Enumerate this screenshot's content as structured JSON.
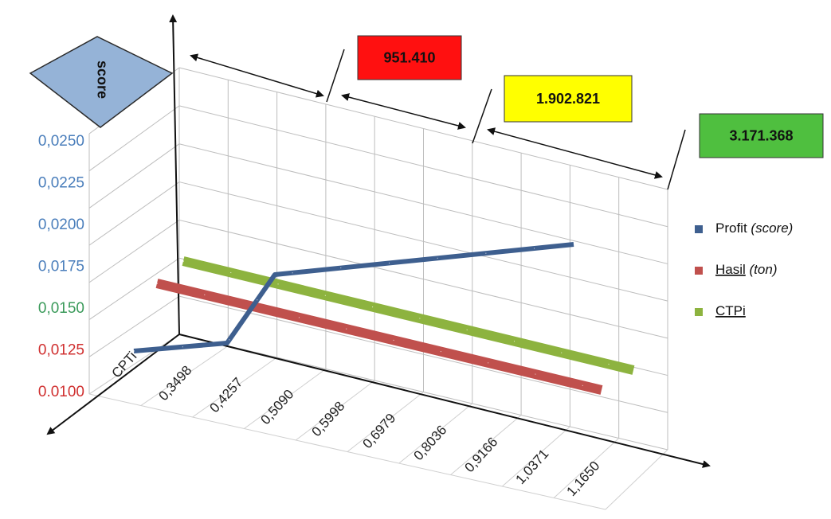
{
  "chart_data": {
    "type": "line",
    "ylabel": "score",
    "yticks": [
      {
        "label": "0,0250",
        "color": "#4a7ebb"
      },
      {
        "label": "0,0225",
        "color": "#4a7ebb"
      },
      {
        "label": "0,0200",
        "color": "#4a7ebb"
      },
      {
        "label": "0,0175",
        "color": "#4a7ebb"
      },
      {
        "label": "0,0150",
        "color": "#3a9a5a"
      },
      {
        "label": "0,0125",
        "color": "#d03030"
      },
      {
        "label": "0.0100",
        "color": "#d03030"
      }
    ],
    "categories": [
      "CPTi",
      "0,3498",
      "0,4257",
      "0,5090",
      "0,5998",
      "0,6979",
      "0,8036",
      "0,9166",
      "1,0371",
      "1,1650"
    ],
    "series": [
      {
        "name": "Profit",
        "name_suffix": "(score)",
        "color": "#3e5f8f",
        "values": [
          0.0122,
          0.0127,
          0.0171,
          0.0173,
          0.0175,
          0.0177,
          0.0179,
          0.0181,
          0.0184,
          0.0187
        ]
      },
      {
        "name": "Hasil",
        "name_suffix": "(ton)",
        "color": "#c0504d",
        "values": [
          0.015,
          0.015,
          0.015,
          0.015,
          0.015,
          0.015,
          0.015,
          0.015,
          0.015,
          0.015
        ]
      },
      {
        "name": "CTPi",
        "name_suffix": "",
        "color": "#8db33f",
        "values": [
          0.016,
          0.016,
          0.016,
          0.016,
          0.016,
          0.016,
          0.016,
          0.016,
          0.016,
          0.016
        ]
      }
    ],
    "annotations": [
      {
        "text": "951.410",
        "fill": "#ff1010"
      },
      {
        "text": "1.902.821",
        "fill": "#ffff00"
      },
      {
        "text": "3.171.368",
        "fill": "#4fbf3f"
      }
    ],
    "legend_position": "right",
    "grid": true
  }
}
